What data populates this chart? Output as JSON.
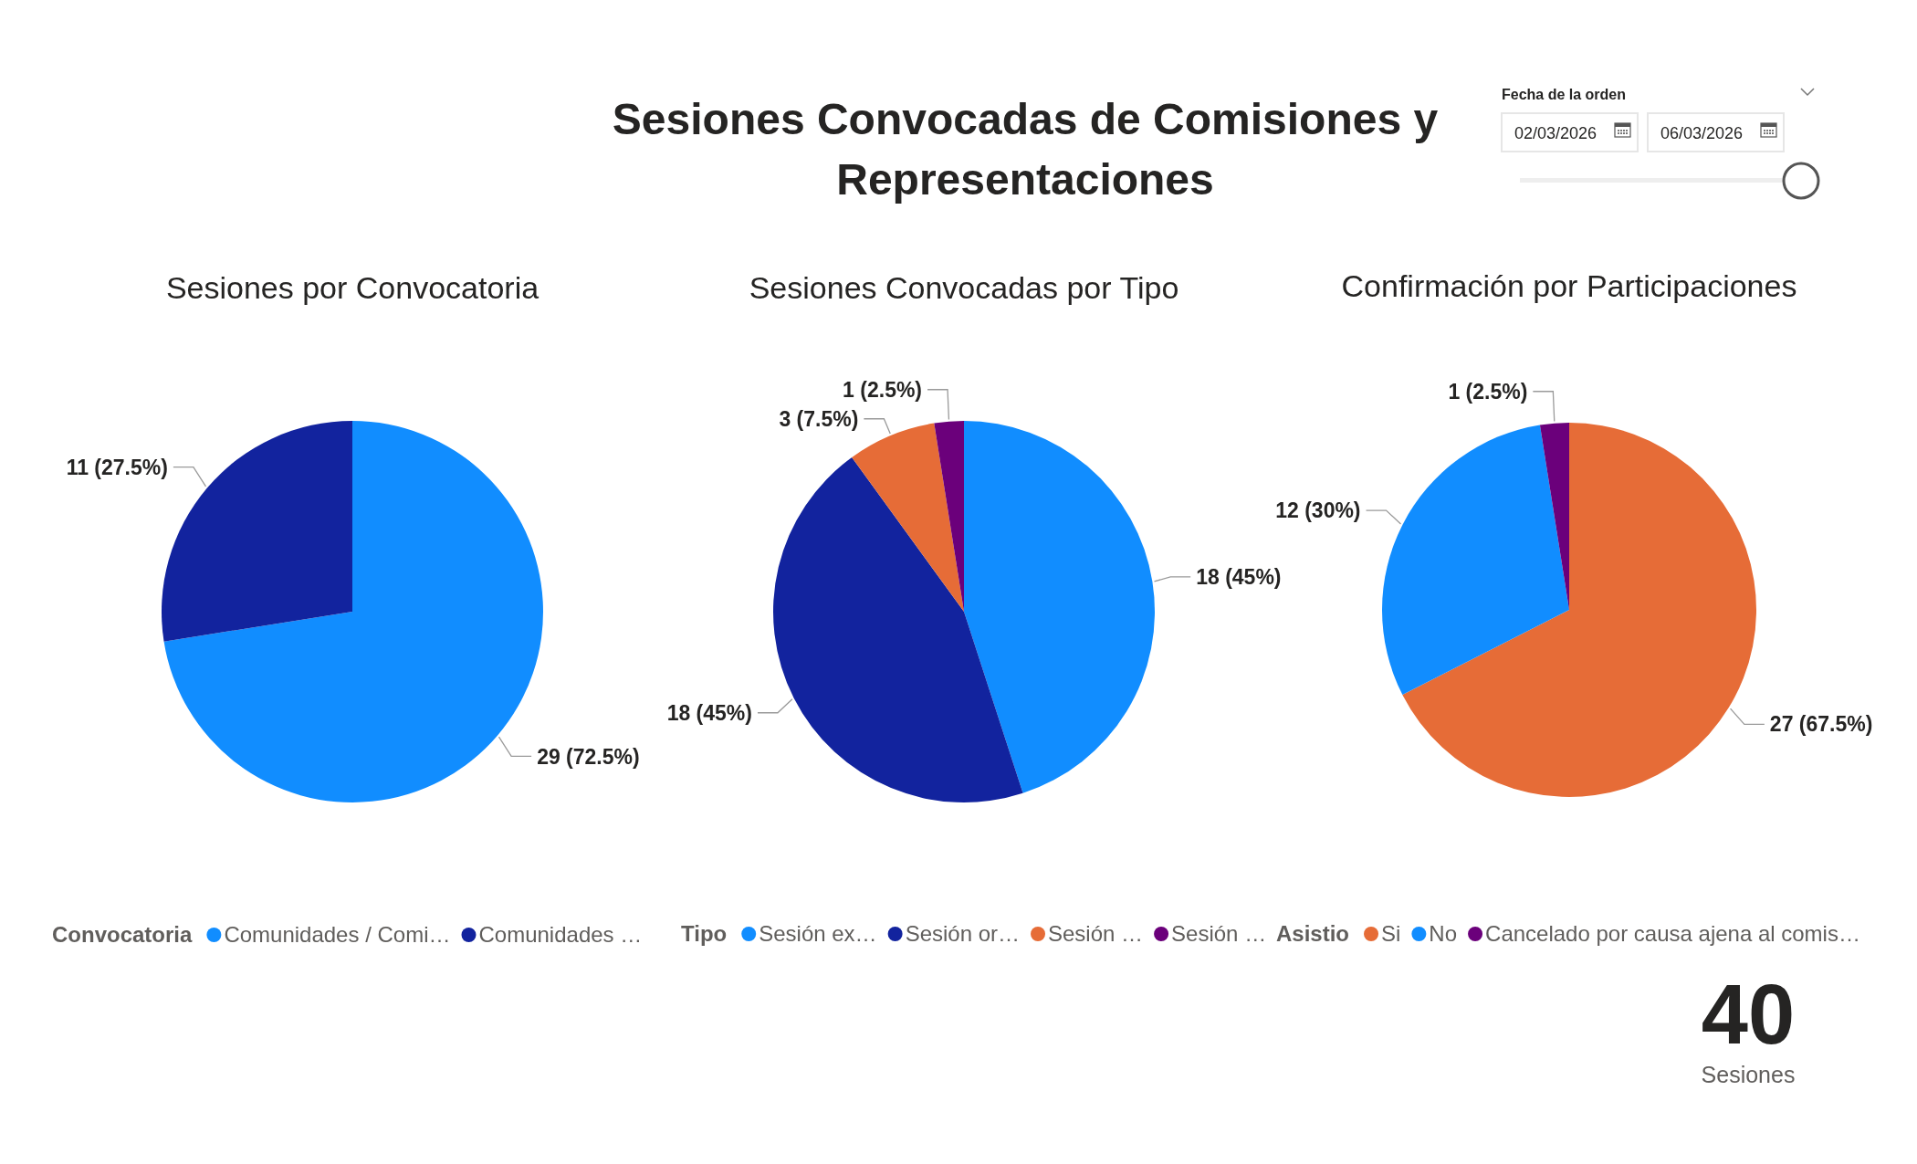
{
  "chart_data": [
    {
      "type": "pie",
      "title": "Sesiones por Convocatoria",
      "legend_title": "Convocatoria",
      "legend": "bottom",
      "categories": [
        "Comunidades / Comi…",
        "Comunidades …"
      ],
      "values": [
        29,
        11
      ],
      "colors": [
        "#118dff",
        "#12239e"
      ],
      "value_labels": [
        "29 (72.5%)",
        "11 (27.5%)"
      ]
    },
    {
      "type": "pie",
      "title": "Sesiones Convocadas por Tipo",
      "legend_title": "Tipo",
      "legend": "bottom",
      "categories": [
        "Sesión ex…",
        "Sesión or…",
        "Sesión …",
        "Sesión …"
      ],
      "values": [
        18,
        18,
        3,
        1
      ],
      "colors": [
        "#118dff",
        "#12239e",
        "#e66c37",
        "#6b007b"
      ],
      "value_labels": [
        "18 (45%)",
        "18 (45%)",
        "3 (7.5%)",
        "1 (2.5%)"
      ]
    },
    {
      "type": "pie",
      "title": "Confirmación por Participaciones",
      "legend_title": "Asistio",
      "legend": "bottom",
      "categories": [
        "Si",
        "No",
        "Cancelado por causa ajena al comis…"
      ],
      "values": [
        27,
        12,
        1
      ],
      "colors": [
        "#e66c37",
        "#118dff",
        "#6b007b"
      ],
      "value_labels": [
        "27 (67.5%)",
        "12 (30%)",
        "1 (2.5%)"
      ]
    },
    {
      "type": "other",
      "title": "Sesiones Convocadas de Comisiones y Representaciones",
      "annotations": [
        "Fecha de la orden",
        "02/03/2026",
        "06/03/2026"
      ]
    },
    {
      "type": "other",
      "annotations": [
        "40",
        "Sesiones"
      ]
    }
  ]
}
